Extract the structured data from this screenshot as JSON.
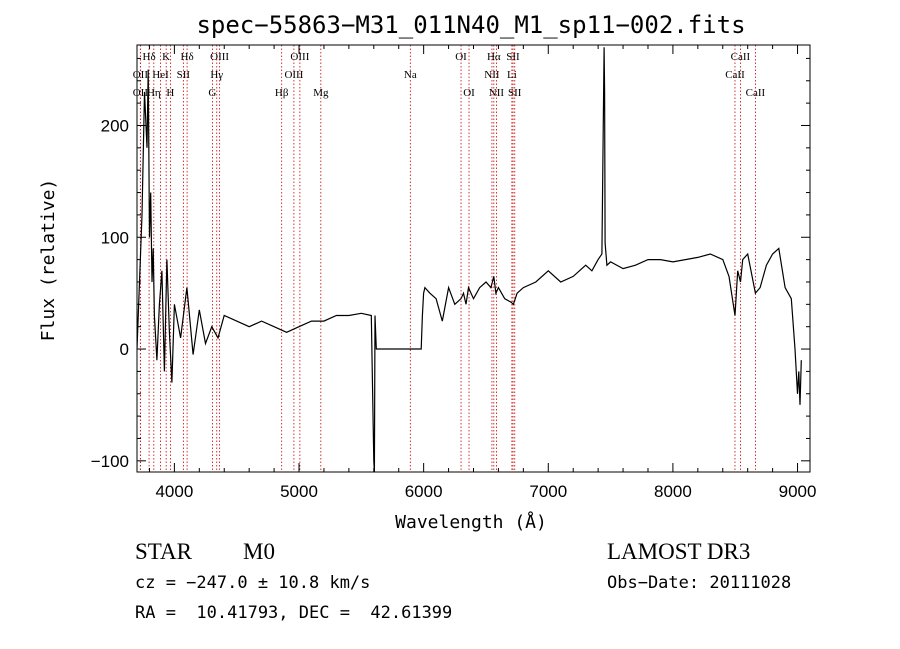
{
  "chart_data": {
    "type": "line",
    "title": "spec−55863−M31_011N40_M1_sp11−002.fits",
    "xlabel": "Wavelength (Å)",
    "ylabel": "Flux (relative)",
    "xlim": [
      3700,
      9100
    ],
    "ylim": [
      -110,
      272
    ],
    "xticks": [
      4000,
      5000,
      6000,
      7000,
      8000,
      9000
    ],
    "xtick_labels": [
      "4000",
      "5000",
      "6000",
      "7000",
      "8000",
      "9000"
    ],
    "yticks": [
      -100,
      0,
      100,
      200
    ],
    "ytick_labels": [
      "−100",
      "0",
      "100",
      "200"
    ],
    "series": [
      {
        "name": "flux",
        "x": [
          3700,
          3740,
          3760,
          3780,
          3790,
          3800,
          3810,
          3820,
          3830,
          3840,
          3860,
          3880,
          3900,
          3920,
          3940,
          3960,
          3980,
          4000,
          4050,
          4100,
          4150,
          4200,
          4250,
          4300,
          4350,
          4400,
          4500,
          4600,
          4700,
          4800,
          4900,
          5000,
          5100,
          5200,
          5300,
          5400,
          5500,
          5580,
          5600,
          5605,
          5610,
          5620,
          5700,
          5800,
          5900,
          5950,
          5980,
          5990,
          6000,
          6010,
          6050,
          6100,
          6150,
          6200,
          6250,
          6300,
          6320,
          6340,
          6360,
          6400,
          6450,
          6500,
          6540,
          6563,
          6580,
          6600,
          6650,
          6700,
          6720,
          6750,
          6800,
          6900,
          7000,
          7100,
          7200,
          7300,
          7350,
          7400,
          7430,
          7448,
          7452,
          7456,
          7470,
          7500,
          7600,
          7700,
          7800,
          7900,
          8000,
          8100,
          8200,
          8300,
          8400,
          8450,
          8498,
          8520,
          8542,
          8560,
          8600,
          8662,
          8700,
          8750,
          8800,
          8850,
          8900,
          8950,
          8980,
          9000,
          9010,
          9020,
          9030
        ],
        "values": [
          0,
          120,
          230,
          180,
          250,
          100,
          140,
          60,
          90,
          30,
          -10,
          40,
          70,
          -20,
          80,
          15,
          -30,
          40,
          10,
          55,
          -5,
          35,
          5,
          20,
          10,
          30,
          25,
          20,
          25,
          20,
          15,
          20,
          25,
          25,
          30,
          30,
          32,
          30,
          -100,
          -110,
          30,
          0,
          0,
          0,
          0,
          0,
          0,
          30,
          50,
          55,
          50,
          45,
          25,
          55,
          40,
          45,
          50,
          40,
          55,
          45,
          55,
          60,
          55,
          65,
          50,
          55,
          45,
          42,
          40,
          50,
          55,
          60,
          70,
          60,
          65,
          75,
          70,
          80,
          85,
          270,
          230,
          95,
          75,
          78,
          72,
          75,
          80,
          80,
          78,
          80,
          82,
          85,
          80,
          65,
          30,
          70,
          60,
          80,
          85,
          50,
          55,
          75,
          85,
          90,
          55,
          45,
          0,
          -40,
          -20,
          -50,
          -10
        ]
      }
    ],
    "lines": [
      {
        "name": "Hδ",
        "wl": 3797,
        "row": 0
      },
      {
        "name": "K",
        "wl": 3934,
        "row": 0
      },
      {
        "name": "Hδ",
        "wl": 4102,
        "row": 0
      },
      {
        "name": "OIII",
        "wl": 4363,
        "row": 0
      },
      {
        "name": "OIII",
        "wl": 5007,
        "row": 0
      },
      {
        "name": "OI",
        "wl": 6300,
        "row": 0
      },
      {
        "name": "Hα",
        "wl": 6563,
        "row": 0
      },
      {
        "name": "SII",
        "wl": 6717,
        "row": 0
      },
      {
        "name": "CaII",
        "wl": 8542,
        "row": 0
      },
      {
        "name": "OII",
        "wl": 3727,
        "row": 1
      },
      {
        "name": "HeI",
        "wl": 3889,
        "row": 1
      },
      {
        "name": "SII",
        "wl": 4072,
        "row": 1
      },
      {
        "name": "Hγ",
        "wl": 4340,
        "row": 1
      },
      {
        "name": "OIII",
        "wl": 4959,
        "row": 1
      },
      {
        "name": "Na",
        "wl": 5893,
        "row": 1
      },
      {
        "name": "NII",
        "wl": 6548,
        "row": 1
      },
      {
        "name": "Li",
        "wl": 6708,
        "row": 1
      },
      {
        "name": "CaII",
        "wl": 8498,
        "row": 1
      },
      {
        "name": "OII",
        "wl": 3727,
        "row": 2
      },
      {
        "name": "Hη",
        "wl": 3835,
        "row": 2
      },
      {
        "name": "H",
        "wl": 3968,
        "row": 2
      },
      {
        "name": "G",
        "wl": 4305,
        "row": 2
      },
      {
        "name": "Hβ",
        "wl": 4861,
        "row": 2
      },
      {
        "name": "Mg",
        "wl": 5175,
        "row": 2
      },
      {
        "name": "OI",
        "wl": 6364,
        "row": 2
      },
      {
        "name": "NII",
        "wl": 6584,
        "row": 2
      },
      {
        "name": "SII",
        "wl": 6731,
        "row": 2
      },
      {
        "name": "CaII",
        "wl": 8662,
        "row": 2
      }
    ]
  },
  "info": {
    "class": "STAR",
    "subclass": "M0",
    "cz": "cz = −247.0 ± 10.8 km/s",
    "radec": "RA =  10.41793, DEC =  42.61399",
    "survey": "LAMOST DR3",
    "obsdate": "Obs−Date: 20111028"
  },
  "colors": {
    "line_marker": "#cc0000",
    "spectrum": "#000000"
  }
}
